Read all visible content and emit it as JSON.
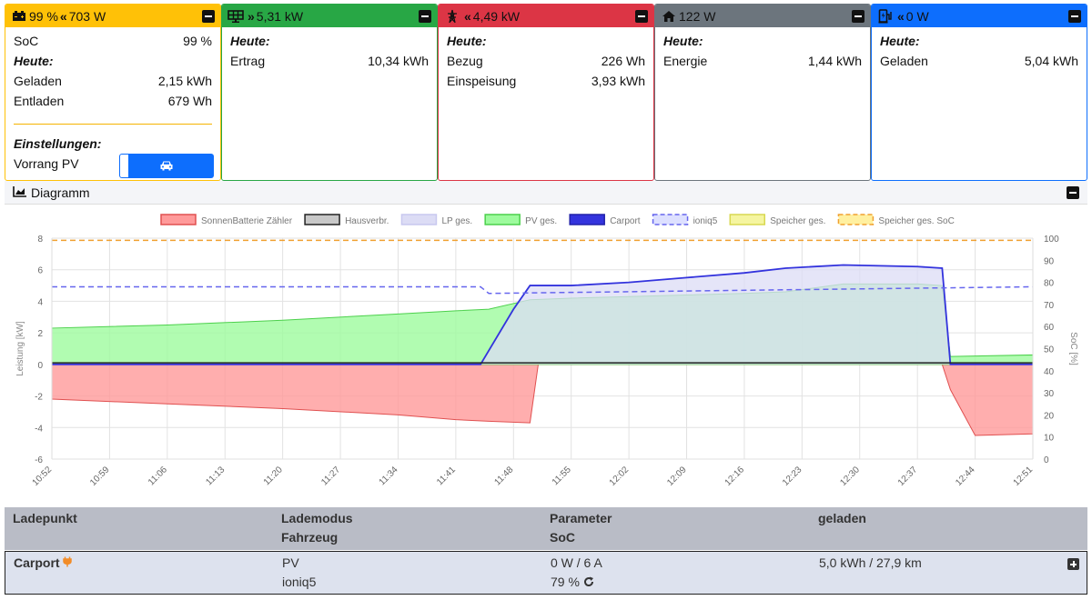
{
  "cards": {
    "battery": {
      "header": "99 % ",
      "header_power": "703 W",
      "soc_label": "SoC",
      "soc_value": "99 %",
      "today": "Heute:",
      "charged_label": "Geladen",
      "charged_value": "2,15 kWh",
      "discharged_label": "Entladen",
      "discharged_value": "679 Wh",
      "settings": "Einstellungen:",
      "priority_label": "Vorrang PV",
      "color": "#ffc107"
    },
    "pv": {
      "header": "5,31 kW",
      "today": "Heute:",
      "yield_label": "Ertrag",
      "yield_value": "10,34 kWh",
      "color": "#28a745"
    },
    "grid": {
      "header": "4,49 kW",
      "today": "Heute:",
      "import_label": "Bezug",
      "import_value": "226 Wh",
      "export_label": "Einspeisung",
      "export_value": "3,93 kWh",
      "color": "#dc3545"
    },
    "house": {
      "header": "122 W",
      "today": "Heute:",
      "energy_label": "Energie",
      "energy_value": "1,44 kWh",
      "color": "#6c757d"
    },
    "charge": {
      "header": "0 W",
      "today": "Heute:",
      "charged_label": "Geladen",
      "charged_value": "5,04 kWh",
      "color": "#0d6efd"
    }
  },
  "diagram": {
    "title": "Diagramm"
  },
  "table": {
    "headers": {
      "col1": "Ladepunkt",
      "col2a": "Lademodus",
      "col2b": "Fahrzeug",
      "col3a": "Parameter",
      "col3b": "SoC",
      "col4": "geladen"
    },
    "row": {
      "chargepoint": "Carport",
      "mode": "PV",
      "vehicle": "ioniq5",
      "parameter": "0 W / 6 A",
      "soc": "79 %",
      "charged": "5,0 kWh / 27,9 km"
    }
  },
  "chart_data": {
    "type": "area",
    "ylabel": "Leistung [kW]",
    "y2label": "SoC [%]",
    "ylim": [
      -6,
      8
    ],
    "y2lim": [
      0,
      100
    ],
    "yticks": [
      -6,
      -4,
      -2,
      0,
      2,
      4,
      6,
      8
    ],
    "y2ticks": [
      0,
      10,
      20,
      30,
      40,
      50,
      60,
      70,
      80,
      90,
      100
    ],
    "xticks": [
      "10:52",
      "10:59",
      "11:06",
      "11:13",
      "11:20",
      "11:27",
      "11:34",
      "11:41",
      "11:48",
      "11:55",
      "12:02",
      "12:09",
      "12:16",
      "12:23",
      "12:30",
      "12:37",
      "12:44",
      "12:51"
    ],
    "legend_position": "top",
    "legend": [
      {
        "name": "SonnenBatterie Zähler",
        "color": "#ff9a9a",
        "border": "#e05050",
        "style": "solid"
      },
      {
        "name": "Hausverbr.",
        "color": "#c8c8c8",
        "border": "#222222",
        "style": "solid"
      },
      {
        "name": "LP ges.",
        "color": "#dcdcf5",
        "border": "#c8c8ef",
        "style": "solid"
      },
      {
        "name": "PV ges.",
        "color": "#9dfb9d",
        "border": "#4cd04c",
        "style": "solid"
      },
      {
        "name": "Carport",
        "color": "#3333dd",
        "border": "#2222aa",
        "style": "solid"
      },
      {
        "name": "ioniq5",
        "color": "#dde0ff",
        "border": "#6666ee",
        "style": "dashed"
      },
      {
        "name": "Speicher ges.",
        "color": "#f5f5a0",
        "border": "#d8d850",
        "style": "solid"
      },
      {
        "name": "Speicher ges. SoC",
        "color": "#fff0a0",
        "border": "#f0a030",
        "style": "dashed"
      }
    ],
    "series": [
      {
        "name": "PV ges.",
        "unit": "kW",
        "x": [
          "10:52",
          "11:06",
          "11:20",
          "11:34",
          "11:41",
          "11:45",
          "11:50",
          "11:55",
          "12:02",
          "12:09",
          "12:16",
          "12:21",
          "12:28",
          "12:37",
          "12:40",
          "12:41",
          "12:51"
        ],
        "values": [
          2.3,
          2.5,
          2.8,
          3.2,
          3.4,
          3.5,
          4.1,
          4.2,
          4.3,
          4.4,
          4.5,
          4.6,
          5.1,
          5.1,
          5.0,
          0.5,
          0.6
        ]
      },
      {
        "name": "SonnenBatterie Zähler",
        "unit": "kW",
        "x": [
          "10:52",
          "11:06",
          "11:20",
          "11:34",
          "11:41",
          "11:45",
          "11:50",
          "11:51",
          "12:40",
          "12:41",
          "12:44",
          "12:51"
        ],
        "values": [
          -2.2,
          -2.5,
          -2.8,
          -3.2,
          -3.5,
          -3.6,
          -3.7,
          0.0,
          0.0,
          -1.6,
          -4.5,
          -4.4
        ]
      },
      {
        "name": "Carport",
        "unit": "kW",
        "x": [
          "10:52",
          "11:44",
          "11:48",
          "11:50",
          "11:55",
          "12:02",
          "12:09",
          "12:16",
          "12:21",
          "12:28",
          "12:37",
          "12:40",
          "12:41",
          "12:51"
        ],
        "values": [
          0.0,
          0.0,
          3.5,
          5.0,
          5.0,
          5.2,
          5.5,
          5.8,
          6.1,
          6.3,
          6.2,
          6.1,
          0.0,
          0.0
        ]
      },
      {
        "name": "ioniq5",
        "unit": "%",
        "x": [
          "10:52",
          "11:44",
          "11:45",
          "12:51"
        ],
        "values": [
          78,
          78,
          75,
          78
        ]
      },
      {
        "name": "Speicher ges. SoC",
        "unit": "%",
        "x": [
          "10:52",
          "12:51"
        ],
        "values": [
          99,
          99
        ]
      },
      {
        "name": "Hausverbr.",
        "unit": "kW",
        "x": [
          "10:52",
          "12:51"
        ],
        "values": [
          0.1,
          0.1
        ]
      }
    ]
  }
}
